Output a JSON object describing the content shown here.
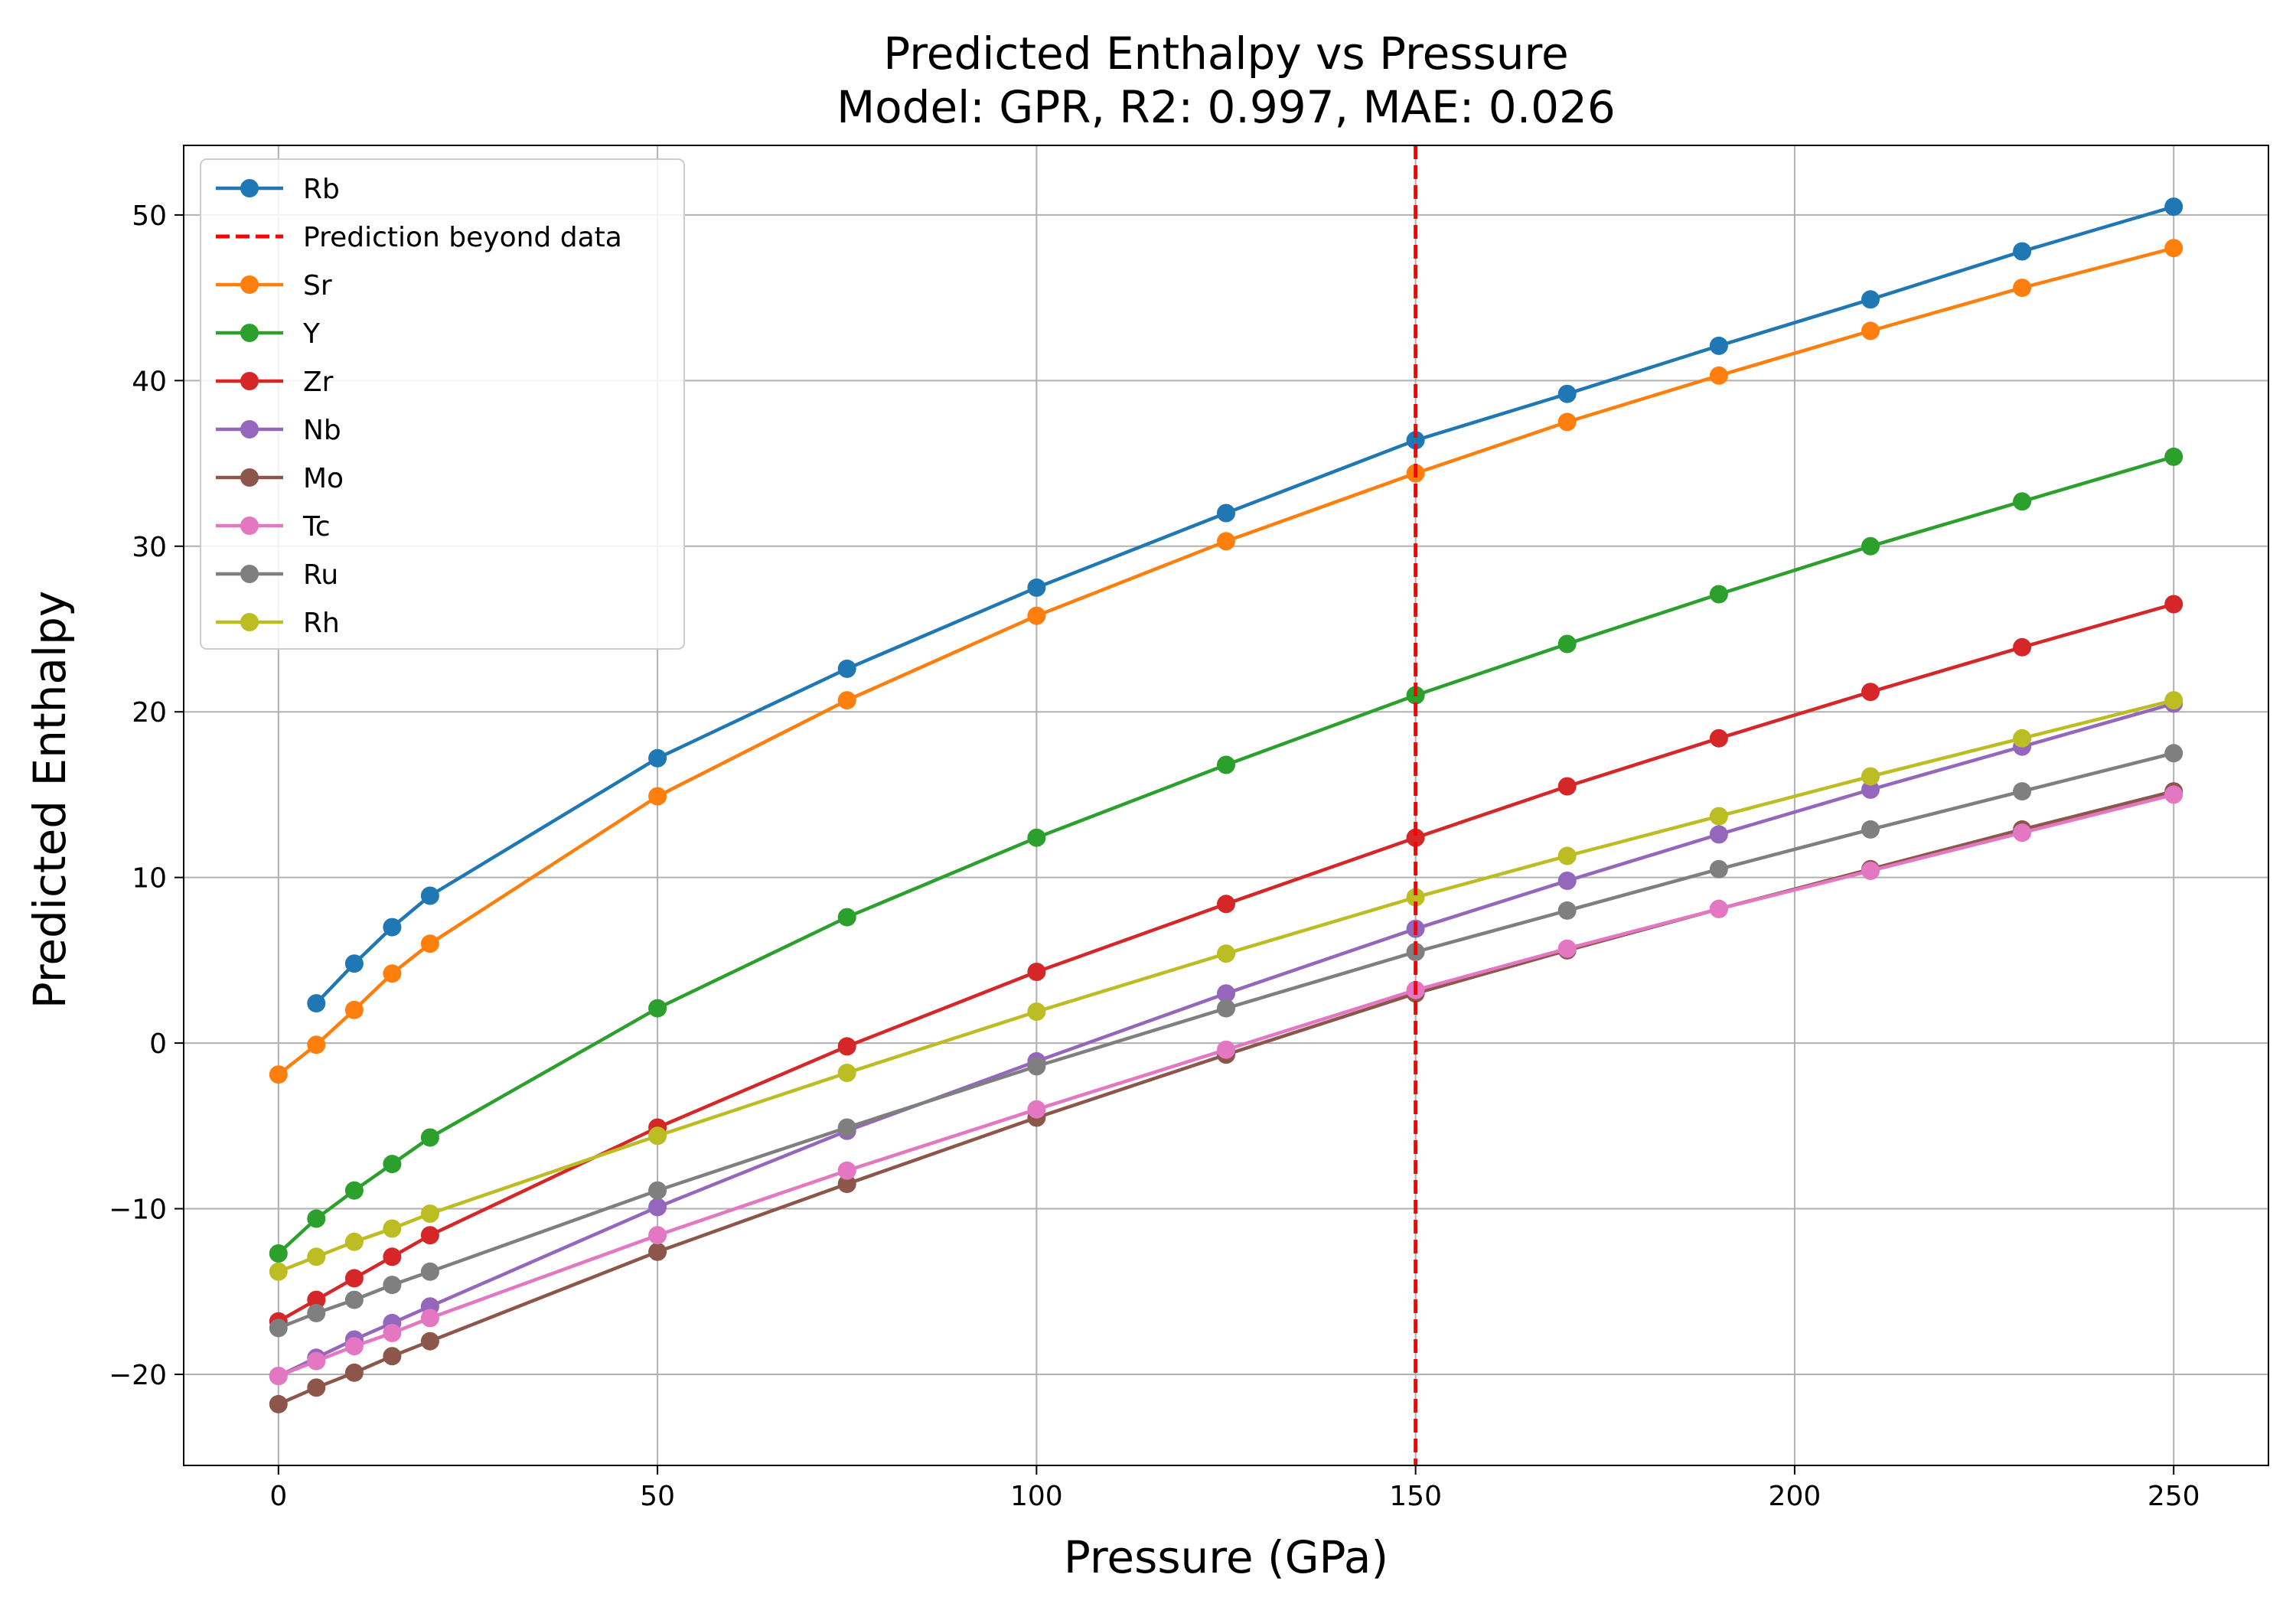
{
  "chart_data": {
    "type": "line",
    "title": "Predicted Enthalpy vs Pressure",
    "subtitle": "Model: GPR, R2: 0.997, MAE: 0.026",
    "xlabel": "Pressure (GPa)",
    "ylabel": "Predicted Enthalpy",
    "xlim": [
      -12.5,
      262.5
    ],
    "ylim": [
      -25.5,
      54.2
    ],
    "xticks": [
      0,
      50,
      100,
      150,
      200,
      250
    ],
    "yticks": [
      -20,
      -10,
      0,
      10,
      20,
      30,
      40,
      50
    ],
    "xtick_labels": [
      "0",
      "50",
      "100",
      "150",
      "200",
      "250"
    ],
    "ytick_labels": [
      "−20",
      "−10",
      "0",
      "10",
      "20",
      "30",
      "40",
      "50"
    ],
    "grid": true,
    "legend_position": "top-left",
    "vline": {
      "x": 150,
      "label": "Prediction beyond data",
      "color": "#ff0000",
      "style": "dashed"
    },
    "x": [
      0,
      5,
      10,
      15,
      20,
      50,
      75,
      100,
      125,
      150,
      170,
      190,
      210,
      230,
      250
    ],
    "series": [
      {
        "name": "Rb",
        "color": "#1f77b4",
        "values": [
          null,
          2.4,
          4.8,
          7.0,
          8.9,
          17.2,
          22.6,
          27.5,
          32.0,
          36.4,
          39.2,
          42.1,
          44.9,
          47.8,
          50.5
        ]
      },
      {
        "name": "Sr",
        "color": "#ff7f0e",
        "values": [
          -1.9,
          -0.1,
          2.0,
          4.2,
          6.0,
          14.9,
          20.7,
          25.8,
          30.3,
          34.4,
          37.5,
          40.3,
          43.0,
          45.6,
          48.0
        ]
      },
      {
        "name": "Y",
        "color": "#2ca02c",
        "values": [
          -12.7,
          -10.6,
          -8.9,
          -7.3,
          -5.7,
          2.1,
          7.6,
          12.4,
          16.8,
          21.0,
          24.1,
          27.1,
          30.0,
          32.7,
          35.4
        ]
      },
      {
        "name": "Zr",
        "color": "#d62728",
        "values": [
          -16.8,
          -15.5,
          -14.2,
          -12.9,
          -11.6,
          -5.1,
          -0.2,
          4.3,
          8.4,
          12.4,
          15.5,
          18.4,
          21.2,
          23.9,
          26.5
        ]
      },
      {
        "name": "Nb",
        "color": "#9467bd",
        "values": [
          -20.1,
          -19.0,
          -17.9,
          -16.9,
          -15.9,
          -9.9,
          -5.3,
          -1.1,
          3.0,
          6.9,
          9.8,
          12.6,
          15.3,
          17.9,
          20.5
        ]
      },
      {
        "name": "Mo",
        "color": "#8c564b",
        "values": [
          -21.8,
          -20.8,
          -19.9,
          -18.9,
          -18.0,
          -12.6,
          -8.5,
          -4.5,
          -0.7,
          3.0,
          5.6,
          8.1,
          10.5,
          12.9,
          15.2
        ]
      },
      {
        "name": "Tc",
        "color": "#e377c2",
        "values": [
          -20.1,
          -19.2,
          -18.3,
          -17.5,
          -16.6,
          -11.6,
          -7.7,
          -4.0,
          -0.4,
          3.2,
          5.7,
          8.1,
          10.4,
          12.7,
          15.0
        ]
      },
      {
        "name": "Ru",
        "color": "#7f7f7f",
        "values": [
          -17.2,
          -16.3,
          -15.5,
          -14.6,
          -13.8,
          -8.9,
          -5.1,
          -1.4,
          2.1,
          5.5,
          8.0,
          10.5,
          12.9,
          15.2,
          17.5
        ]
      },
      {
        "name": "Rh",
        "color": "#bcbd22",
        "values": [
          -13.8,
          -12.9,
          -12.0,
          -11.2,
          -10.3,
          -5.6,
          -1.8,
          1.9,
          5.4,
          8.8,
          11.3,
          13.7,
          16.1,
          18.4,
          20.7
        ]
      }
    ],
    "legend_order": [
      "Rb",
      "Prediction beyond data",
      "Sr",
      "Y",
      "Zr",
      "Nb",
      "Mo",
      "Tc",
      "Ru",
      "Rh"
    ]
  }
}
